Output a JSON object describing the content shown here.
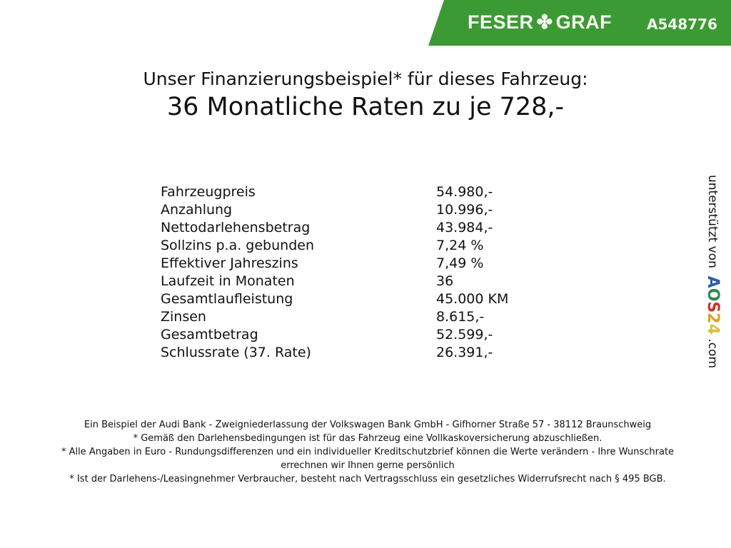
{
  "header": {
    "brand": "FESER",
    "brand2": "GRAF",
    "clover_icon": "clover-icon",
    "code": "A548776",
    "color": "#3c9a35"
  },
  "title": {
    "line1": "Unser Finanzierungsbeispiel* für dieses Fahrzeug:",
    "line2": "36 Monatliche Raten zu je 728,-"
  },
  "rows": [
    {
      "label": "Fahrzeugpreis",
      "value": "54.980,-"
    },
    {
      "label": "Anzahlung",
      "value": "10.996,-"
    },
    {
      "label": "Nettodarlehensbetrag",
      "value": "43.984,-"
    },
    {
      "label": "Sollzins p.a. gebunden",
      "value": "7,24 %"
    },
    {
      "label": "Effektiver Jahreszins",
      "value": "7,49 %"
    },
    {
      "label": "Laufzeit in Monaten",
      "value": "36"
    },
    {
      "label": "Gesamtlaufleistung",
      "value": "45.000 KM"
    },
    {
      "label": "Zinsen",
      "value": "8.615,-"
    },
    {
      "label": "Gesamtbetrag",
      "value": "52.599,-"
    },
    {
      "label": "Schlussrate (37. Rate)",
      "value": "26.391,-"
    }
  ],
  "footer": [
    "Ein Beispiel der Audi Bank - Zweigniederlassung der Volkswagen Bank GmbH - Gifhorner Straße 57 - 38112 Braunschweig",
    "* Gemäß den Darlehensbedingungen ist für das Fahrzeug eine Vollkaskoversicherung abzuschließen.",
    "* Alle Angaben in Euro - Rundungsdifferenzen und ein individueller Kreditschutzbrief können die Werte verändern - Ihre Wunschrate errechnen wir Ihnen gerne persönlich",
    "* Ist der Darlehens-/Leasingnehmer Verbraucher, besteht nach Vertragsschluss ein gesetzliches Widerrufsrecht nach § 495 BGB."
  ],
  "sidebar": {
    "text": "unterstützt von",
    "logo": "AOS24",
    ".com": ".com"
  }
}
